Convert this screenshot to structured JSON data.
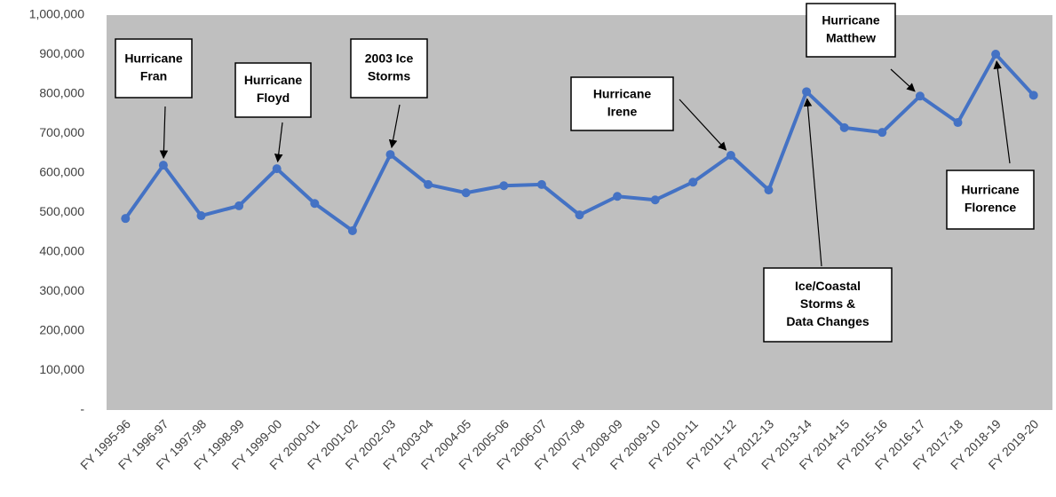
{
  "chart_data": {
    "type": "line",
    "categories": [
      "FY 1995-96",
      "FY 1996-97",
      "FY 1997-98",
      "FY 1998-99",
      "FY 1999-00",
      "FY 2000-01",
      "FY 2001-02",
      "FY 2002-03",
      "FY 2003-04",
      "FY 2004-05",
      "FY 2005-06",
      "FY 2006-07",
      "FY 2007-08",
      "FY 2008-09",
      "FY 2009-10",
      "FY 2010-11",
      "FY 2011-12",
      "FY 2012-13",
      "FY 2013-14",
      "FY 2014-15",
      "FY 2015-16",
      "FY 2016-17",
      "FY 2017-18",
      "FY 2018-19",
      "FY 2019-20"
    ],
    "series": [
      {
        "color": "#4472c4",
        "values": [
          485000,
          620000,
          492000,
          517000,
          611000,
          523000,
          454000,
          647000,
          571000,
          550000,
          568000,
          571000,
          494000,
          541000,
          532000,
          577000,
          645000,
          557000,
          806000,
          715000,
          703000,
          795000,
          728000,
          901000,
          797000
        ]
      }
    ],
    "ylim": [
      0,
      1000000
    ],
    "yticks": [
      {
        "value": 0,
        "label": "-"
      },
      {
        "value": 100000,
        "label": "100,000"
      },
      {
        "value": 200000,
        "label": "200,000"
      },
      {
        "value": 300000,
        "label": "300,000"
      },
      {
        "value": 400000,
        "label": "400,000"
      },
      {
        "value": 500000,
        "label": "500,000"
      },
      {
        "value": 600000,
        "label": "600,000"
      },
      {
        "value": 700000,
        "label": "700,000"
      },
      {
        "value": 800000,
        "label": "800,000"
      },
      {
        "value": 900000,
        "label": "900,000"
      },
      {
        "value": 1000000,
        "label": "1,000,000"
      }
    ],
    "grid": false,
    "annotations": [
      {
        "lines": [
          "Hurricane",
          "Fran"
        ]
      },
      {
        "lines": [
          "Hurricane",
          "Floyd"
        ]
      },
      {
        "lines": [
          "2003 Ice",
          "Storms"
        ]
      },
      {
        "lines": [
          "Hurricane",
          "Irene"
        ]
      },
      {
        "lines": [
          "Hurricane",
          "Matthew"
        ]
      },
      {
        "lines": [
          "Ice/Coastal",
          "Storms &",
          "Data Changes"
        ]
      },
      {
        "lines": [
          "Hurricane",
          "Florence"
        ]
      }
    ]
  }
}
